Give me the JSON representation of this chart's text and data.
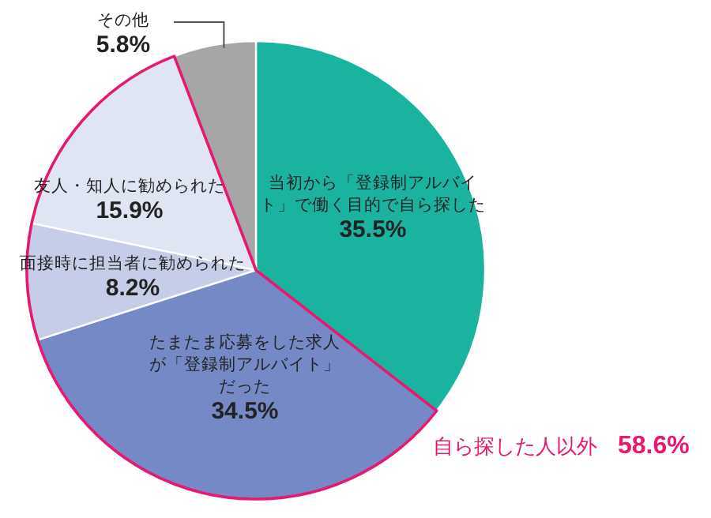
{
  "chart_data": {
    "type": "pie",
    "categories": [
      "当初から「登録制アルバイト」で働く目的で自ら探した",
      "たまたま応募をした求人が「登録制アルバイト」だった",
      "面接時に担当者に勧められた",
      "友人・知人に勧められた",
      "その他"
    ],
    "values": [
      35.5,
      34.5,
      8.2,
      15.9,
      5.8
    ],
    "colors": [
      "#1ab39f",
      "#7489c6",
      "#c6cde8",
      "#e0e5f3",
      "#a6a6a6"
    ],
    "value_labels": [
      "35.5%",
      "34.5%",
      "8.2%",
      "15.9%",
      "5.8%"
    ],
    "annotations": [
      "自ら探した人以外　**58.6%**"
    ]
  }
}
